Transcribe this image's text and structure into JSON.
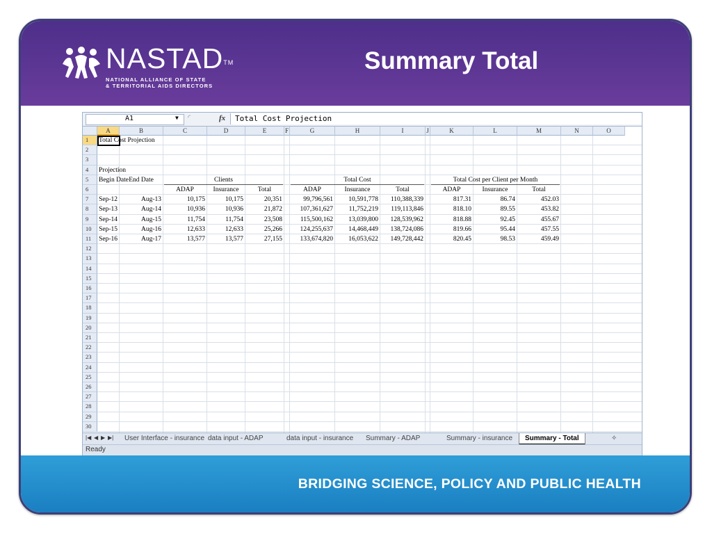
{
  "header": {
    "logo_name": "NASTAD",
    "logo_tm": "TM",
    "logo_sub_line1": "NATIONAL ALLIANCE OF STATE",
    "logo_sub_line2": "& TERRITORIAL AIDS DIRECTORS",
    "title": "Summary Total"
  },
  "footer": {
    "tagline": "BRIDGING SCIENCE, POLICY AND PUBLIC HEALTH"
  },
  "colors": {
    "header_purple": "#5a3593",
    "footer_blue": "#2a93d1",
    "cell_selection": "#000000"
  },
  "sheet": {
    "name_box": "A1",
    "fx": "fx",
    "formula": "Total Cost Projection",
    "columns": [
      "A",
      "B",
      "C",
      "D",
      "E",
      "F",
      "G",
      "H",
      "I",
      "J",
      "K",
      "L",
      "M",
      "N",
      "O"
    ],
    "rows": [
      "1",
      "2",
      "3",
      "4",
      "5",
      "6",
      "7",
      "8",
      "9",
      "10",
      "11",
      "12",
      "13",
      "14",
      "15",
      "16",
      "17",
      "18",
      "19",
      "20",
      "21",
      "22",
      "23",
      "24",
      "25",
      "26",
      "27",
      "28",
      "29",
      "30"
    ],
    "title_cell": "Total Cost Projection",
    "projection_label": "Projection",
    "begin_date": "Begin Date",
    "end_date": "End Date",
    "groups": {
      "clients": "Clients",
      "total_cost": "Total Cost",
      "per_client": "Total Cost per Client per Month"
    },
    "sub_headers": {
      "adap": "ADAP",
      "insurance": "Insurance",
      "total": "Total"
    },
    "data_rows": [
      {
        "begin": "Sep-12",
        "end": "Aug-13",
        "c_adap": "10,175",
        "c_ins": "10,175",
        "c_tot": "20,351",
        "t_adap": "99,796,561",
        "t_ins": "10,591,778",
        "t_tot": "110,388,339",
        "p_adap": "817.31",
        "p_ins": "86.74",
        "p_tot": "452.03"
      },
      {
        "begin": "Sep-13",
        "end": "Aug-14",
        "c_adap": "10,936",
        "c_ins": "10,936",
        "c_tot": "21,872",
        "t_adap": "107,361,627",
        "t_ins": "11,752,219",
        "t_tot": "119,113,846",
        "p_adap": "818.10",
        "p_ins": "89.55",
        "p_tot": "453.82"
      },
      {
        "begin": "Sep-14",
        "end": "Aug-15",
        "c_adap": "11,754",
        "c_ins": "11,754",
        "c_tot": "23,508",
        "t_adap": "115,500,162",
        "t_ins": "13,039,800",
        "t_tot": "128,539,962",
        "p_adap": "818.88",
        "p_ins": "92.45",
        "p_tot": "455.67"
      },
      {
        "begin": "Sep-15",
        "end": "Aug-16",
        "c_adap": "12,633",
        "c_ins": "12,633",
        "c_tot": "25,266",
        "t_adap": "124,255,637",
        "t_ins": "14,468,449",
        "t_tot": "138,724,086",
        "p_adap": "819.66",
        "p_ins": "95.44",
        "p_tot": "457.55"
      },
      {
        "begin": "Sep-16",
        "end": "Aug-17",
        "c_adap": "13,577",
        "c_ins": "13,577",
        "c_tot": "27,155",
        "t_adap": "133,674,820",
        "t_ins": "16,053,622",
        "t_tot": "149,728,442",
        "p_adap": "820.45",
        "p_ins": "98.53",
        "p_tot": "459.49"
      }
    ],
    "tabs": [
      "User Interface - insurance",
      "data input - ADAP",
      "data input - insurance",
      "Summary - ADAP",
      "Summary - insurance",
      "Summary - Total"
    ],
    "active_tab": "Summary - Total",
    "status": "Ready"
  }
}
